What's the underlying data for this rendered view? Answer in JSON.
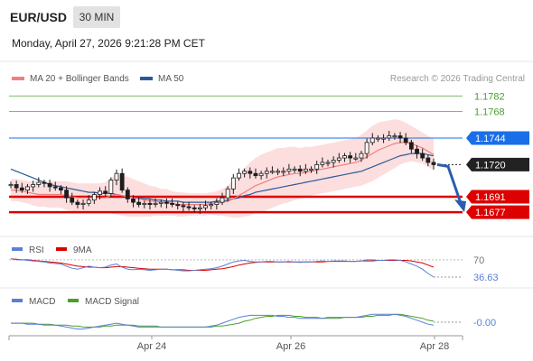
{
  "header": {
    "symbol": "EUR/USD",
    "timeframe": "30 MIN",
    "datetime": "Monday, April 27, 2026 9:21:28 PM CET"
  },
  "legend": {
    "ma20_label": "MA 20 + Bollinger Bands",
    "ma50_label": "MA 50",
    "credit": "Research © 2026 Trading Central",
    "rsi_label": "RSI",
    "rsi_ma_label": "9MA",
    "macd_label": "MACD",
    "macd_signal_label": "MACD Signal"
  },
  "colors": {
    "ma20": "#f08080",
    "ma50": "#2a5a9a",
    "band_fill": "#fbd3d3",
    "target_green": "#4aa02c",
    "pivot_blue": "#1a6fe8",
    "support_red": "#dd0000",
    "current_dark": "#222222",
    "rsi": "#5b7fd6",
    "rsi_ma": "#dd0000",
    "macd": "#5b7fd6",
    "macd_signal": "#4aa02c",
    "arrow": "#2a5db0"
  },
  "chart_data": {
    "type": "line",
    "instrument": "EUR/USD",
    "timeframe": "30 MIN",
    "x_ticks": [
      "Apr 24",
      "Apr 26",
      "Apr 28"
    ],
    "price_levels": [
      {
        "kind": "resistance",
        "label": "1.1782",
        "value": 1.1782,
        "color": "#4aa02c"
      },
      {
        "kind": "resistance",
        "label": "1.1768",
        "value": 1.1768,
        "color": "#4aa02c"
      },
      {
        "kind": "pivot",
        "label": "1.1744",
        "value": 1.1744,
        "color": "#1a6fe8"
      },
      {
        "kind": "last",
        "label": "1.1720",
        "value": 1.172,
        "color": "#222222"
      },
      {
        "kind": "support",
        "label": "1.1691",
        "value": 1.1691,
        "color": "#dd0000"
      },
      {
        "kind": "support",
        "label": "1.1677",
        "value": 1.1677,
        "color": "#dd0000"
      }
    ],
    "ylim": [
      1.166,
      1.181
    ],
    "price_series": [
      1.1702,
      1.1699,
      1.1697,
      1.17,
      1.1702,
      1.1704,
      1.1703,
      1.17,
      1.1699,
      1.1697,
      1.169,
      1.1686,
      1.1684,
      1.1685,
      1.1688,
      1.1693,
      1.1696,
      1.1694,
      1.1706,
      1.1712,
      1.1697,
      1.1689,
      1.1686,
      1.1684,
      1.1685,
      1.1684,
      1.1685,
      1.1686,
      1.1685,
      1.1684,
      1.1683,
      1.1682,
      1.1681,
      1.168,
      1.1681,
      1.1683,
      1.1684,
      1.1686,
      1.169,
      1.1698,
      1.1708,
      1.1712,
      1.1714,
      1.1712,
      1.171,
      1.1712,
      1.1714,
      1.1714,
      1.1714,
      1.1714,
      1.1716,
      1.1716,
      1.1714,
      1.1716,
      1.1716,
      1.172,
      1.1722,
      1.1722,
      1.1724,
      1.1726,
      1.1728,
      1.1726,
      1.1726,
      1.173,
      1.174,
      1.1744,
      1.1744,
      1.1744,
      1.1746,
      1.1746,
      1.1744,
      1.174,
      1.1734,
      1.173,
      1.1726,
      1.1722,
      1.172
    ],
    "ma20_series": [
      1.1697,
      1.1697,
      1.1696,
      1.1695,
      1.1694,
      1.1693,
      1.1693,
      1.1693,
      1.1693,
      1.1693,
      1.1692,
      1.1691,
      1.169,
      1.169,
      1.169,
      1.169,
      1.169,
      1.169,
      1.1692,
      1.1693,
      1.1692,
      1.1691,
      1.169,
      1.1689,
      1.1688,
      1.1687,
      1.1687,
      1.1686,
      1.1686,
      1.1685,
      1.1684,
      1.1684,
      1.1684,
      1.1684,
      1.1684,
      1.1684,
      1.1685,
      1.1685,
      1.1686,
      1.1687,
      1.1689,
      1.1692,
      1.1695,
      1.1698,
      1.1701,
      1.1703,
      1.1705,
      1.1707,
      1.1709,
      1.171,
      1.1711,
      1.1712,
      1.1712,
      1.1713,
      1.1714,
      1.1715,
      1.1716,
      1.1717,
      1.1718,
      1.1719,
      1.172,
      1.1721,
      1.1722,
      1.1724,
      1.1727,
      1.173,
      1.1733,
      1.1735,
      1.1737,
      1.1739,
      1.174,
      1.174,
      1.1739,
      1.1737,
      1.1735,
      1.1732,
      1.1729
    ],
    "ma50_series": [
      1.1716,
      1.1714,
      1.1712,
      1.171,
      1.1708,
      1.1706,
      1.1704,
      1.1702,
      1.1701,
      1.17,
      1.1699,
      1.1698,
      1.1697,
      1.1696,
      1.1695,
      1.1695,
      1.1694,
      1.1694,
      1.1694,
      1.1693,
      1.1692,
      1.1691,
      1.169,
      1.169,
      1.1689,
      1.1689,
      1.1688,
      1.1688,
      1.1687,
      1.1687,
      1.1687,
      1.1686,
      1.1686,
      1.1686,
      1.1686,
      1.1686,
      1.1686,
      1.1687,
      1.1687,
      1.1688,
      1.1689,
      1.169,
      1.1692,
      1.1693,
      1.1695,
      1.1696,
      1.1697,
      1.1698,
      1.1699,
      1.17,
      1.1701,
      1.1702,
      1.1703,
      1.1704,
      1.1705,
      1.1706,
      1.1707,
      1.1708,
      1.1709,
      1.171,
      1.1711,
      1.1712,
      1.1713,
      1.1714,
      1.1716,
      1.1718,
      1.172,
      1.1722,
      1.1724,
      1.1726,
      1.1728,
      1.1729,
      1.173,
      1.173,
      1.173,
      1.1729,
      1.1728
    ],
    "band_width": [
      0.001,
      0.001,
      0.001,
      0.001,
      0.0011,
      0.0011,
      0.0011,
      0.0012,
      0.0012,
      0.0012,
      0.0013,
      0.0013,
      0.0013,
      0.0013,
      0.0013,
      0.0013,
      0.0013,
      0.0014,
      0.0016,
      0.0018,
      0.0018,
      0.0018,
      0.0017,
      0.0016,
      0.0015,
      0.0014,
      0.0013,
      0.0012,
      0.0012,
      0.0011,
      0.0011,
      0.0011,
      0.001,
      0.001,
      0.001,
      0.001,
      0.001,
      0.0011,
      0.0012,
      0.0014,
      0.0017,
      0.002,
      0.0022,
      0.0024,
      0.0025,
      0.0026,
      0.0026,
      0.0026,
      0.0026,
      0.0025,
      0.0025,
      0.0024,
      0.0023,
      0.0023,
      0.0022,
      0.0022,
      0.0022,
      0.0022,
      0.0022,
      0.0022,
      0.0022,
      0.0022,
      0.0022,
      0.0023,
      0.0024,
      0.0025,
      0.0025,
      0.0024,
      0.0023,
      0.0022,
      0.002,
      0.0018,
      0.0016,
      0.0015,
      0.0014,
      0.0014,
      0.0014
    ],
    "forecast": [
      1.172,
      1.1677
    ],
    "rsi": {
      "levels": [
        {
          "label": "70",
          "value": 70
        }
      ],
      "last_label": "36.63",
      "ylim": [
        25,
        75
      ],
      "series": [
        72,
        70,
        70,
        69,
        68,
        67,
        66,
        64,
        63,
        62,
        58,
        54,
        52,
        55,
        58,
        56,
        55,
        56,
        60,
        62,
        56,
        52,
        51,
        52,
        51,
        50,
        51,
        52,
        52,
        51,
        50,
        49,
        49,
        50,
        51,
        52,
        53,
        55,
        58,
        62,
        66,
        68,
        69,
        67,
        66,
        66,
        67,
        67,
        66,
        66,
        67,
        66,
        65,
        66,
        66,
        67,
        68,
        67,
        68,
        68,
        68,
        67,
        67,
        68,
        70,
        70,
        69,
        69,
        70,
        70,
        69,
        66,
        62,
        58,
        52,
        44,
        37
      ],
      "ma_series": [
        72,
        71,
        70,
        70,
        69,
        68,
        67,
        66,
        65,
        64,
        62,
        60,
        58,
        57,
        56,
        56,
        55,
        55,
        56,
        57,
        57,
        56,
        55,
        54,
        53,
        52,
        52,
        52,
        52,
        51,
        51,
        51,
        50,
        50,
        50,
        50,
        51,
        52,
        53,
        55,
        57,
        60,
        62,
        64,
        65,
        66,
        66,
        66,
        66,
        66,
        66,
        66,
        66,
        66,
        66,
        66,
        66,
        67,
        67,
        67,
        67,
        67,
        67,
        68,
        68,
        68,
        69,
        69,
        69,
        69,
        69,
        69,
        68,
        66,
        64,
        60,
        56
      ]
    },
    "macd": {
      "last_label": "-0.00",
      "ylim": [
        -0.0012,
        0.0012
      ],
      "series": [
        -0.0001,
        -0.0001,
        -0.0001,
        -0.0002,
        -0.0002,
        -0.0002,
        -0.0003,
        -0.0003,
        -0.0003,
        -0.0004,
        -0.0005,
        -0.0006,
        -0.0007,
        -0.0007,
        -0.0006,
        -0.0005,
        -0.0004,
        -0.0003,
        -0.0002,
        -0.0001,
        -0.0002,
        -0.0003,
        -0.0004,
        -0.0005,
        -0.0005,
        -0.0005,
        -0.0005,
        -0.0005,
        -0.0005,
        -0.0005,
        -0.0005,
        -0.0005,
        -0.0005,
        -0.0005,
        -0.0005,
        -0.0005,
        -0.0004,
        -0.0003,
        -0.0001,
        0.0001,
        0.0003,
        0.0005,
        0.0006,
        0.0007,
        0.0007,
        0.0007,
        0.0007,
        0.0007,
        0.0006,
        0.0006,
        0.0005,
        0.0005,
        0.0004,
        0.0004,
        0.0004,
        0.0004,
        0.0004,
        0.0005,
        0.0005,
        0.0005,
        0.0005,
        0.0005,
        0.0005,
        0.0006,
        0.0007,
        0.0008,
        0.0008,
        0.0008,
        0.0008,
        0.0008,
        0.0007,
        0.0006,
        0.0004,
        0.0002,
        0.0,
        -0.0002,
        -0.0003
      ],
      "signal_series": [
        -0.0001,
        -0.0001,
        -0.0001,
        -0.0001,
        -0.0001,
        -0.0002,
        -0.0002,
        -0.0002,
        -0.0003,
        -0.0003,
        -0.0003,
        -0.0004,
        -0.0004,
        -0.0005,
        -0.0005,
        -0.0005,
        -0.0005,
        -0.0004,
        -0.0004,
        -0.0003,
        -0.0003,
        -0.0003,
        -0.0003,
        -0.0004,
        -0.0004,
        -0.0004,
        -0.0004,
        -0.0005,
        -0.0005,
        -0.0005,
        -0.0005,
        -0.0005,
        -0.0005,
        -0.0005,
        -0.0005,
        -0.0005,
        -0.0005,
        -0.0004,
        -0.0004,
        -0.0003,
        -0.0002,
        -0.0001,
        0.0001,
        0.0002,
        0.0004,
        0.0005,
        0.0006,
        0.0006,
        0.0007,
        0.0007,
        0.0007,
        0.0006,
        0.0006,
        0.0005,
        0.0005,
        0.0005,
        0.0004,
        0.0004,
        0.0004,
        0.0004,
        0.0005,
        0.0005,
        0.0005,
        0.0005,
        0.0006,
        0.0006,
        0.0007,
        0.0007,
        0.0007,
        0.0008,
        0.0008,
        0.0007,
        0.0006,
        0.0005,
        0.0004,
        0.0002,
        0.0001
      ]
    }
  }
}
